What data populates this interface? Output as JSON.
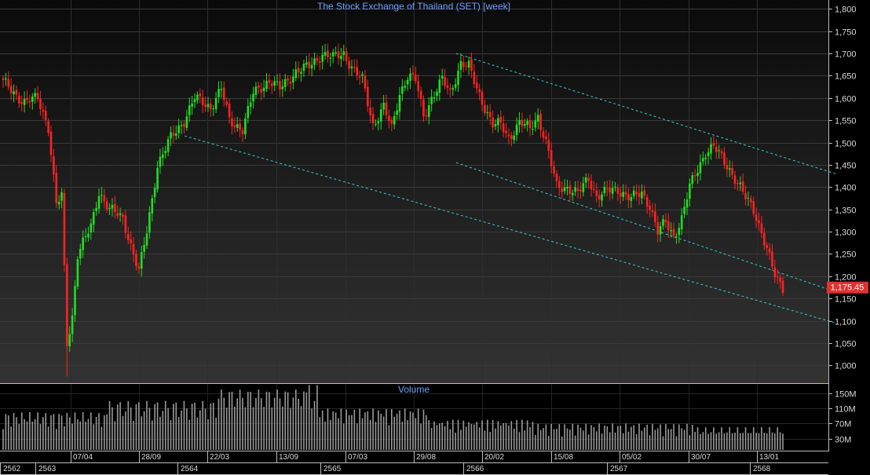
{
  "chart_data": {
    "type": "candlestick",
    "title": "The Stock Exchange of Thailand (SET) [week]",
    "volume_title": "Volume",
    "ylim": [
      960,
      1820
    ],
    "y_ticks": [
      1000,
      1050,
      1100,
      1150,
      1200,
      1250,
      1300,
      1350,
      1400,
      1450,
      1500,
      1550,
      1600,
      1650,
      1700,
      1750,
      1800
    ],
    "y_tick_labels": [
      "1,000",
      "1,050",
      "1,100",
      "1,150",
      "1,200",
      "1,250",
      "1,300",
      "1,350",
      "1,400",
      "1,450",
      "1,500",
      "1,550",
      "1,600",
      "1,650",
      "1,700",
      "1,750",
      "1,800"
    ],
    "volume_ticks": [
      30,
      70,
      110,
      150
    ],
    "volume_tick_labels": [
      "30M",
      "70M",
      "110M",
      "150M"
    ],
    "volume_max": 175,
    "last_price": 1175.45,
    "last_price_label": "1,175.45",
    "x_date_labels": [
      "07/04",
      "28/09",
      "22/03",
      "13/09",
      "07/03",
      "29/08",
      "20/02",
      "15/08",
      "05/02",
      "30/07",
      "13/01"
    ],
    "x_year_labels": [
      "2562",
      "2563",
      "2564",
      "2565",
      "2566",
      "2567",
      "2568"
    ],
    "close_keypoints": [
      [
        0,
        1635
      ],
      [
        8,
        1590
      ],
      [
        13,
        1600
      ],
      [
        17,
        1535
      ],
      [
        20,
        1360
      ],
      [
        22,
        1380
      ],
      [
        24,
        1050
      ],
      [
        26,
        1110
      ],
      [
        28,
        1250
      ],
      [
        33,
        1310
      ],
      [
        36,
        1390
      ],
      [
        40,
        1350
      ],
      [
        45,
        1330
      ],
      [
        51,
        1210
      ],
      [
        54,
        1300
      ],
      [
        58,
        1450
      ],
      [
        63,
        1510
      ],
      [
        68,
        1550
      ],
      [
        72,
        1600
      ],
      [
        78,
        1580
      ],
      [
        82,
        1620
      ],
      [
        85,
        1550
      ],
      [
        90,
        1530
      ],
      [
        94,
        1610
      ],
      [
        100,
        1640
      ],
      [
        104,
        1620
      ],
      [
        110,
        1660
      ],
      [
        115,
        1670
      ],
      [
        120,
        1700
      ],
      [
        124,
        1690
      ],
      [
        128,
        1700
      ],
      [
        132,
        1660
      ],
      [
        135,
        1640
      ],
      [
        139,
        1540
      ],
      [
        143,
        1580
      ],
      [
        146,
        1530
      ],
      [
        149,
        1610
      ],
      [
        152,
        1650
      ],
      [
        155,
        1640
      ],
      [
        158,
        1560
      ],
      [
        161,
        1600
      ],
      [
        165,
        1640
      ],
      [
        168,
        1610
      ],
      [
        172,
        1680
      ],
      [
        175,
        1670
      ],
      [
        178,
        1620
      ],
      [
        181,
        1580
      ],
      [
        184,
        1540
      ],
      [
        187,
        1540
      ],
      [
        190,
        1510
      ],
      [
        194,
        1545
      ],
      [
        198,
        1530
      ],
      [
        201,
        1560
      ],
      [
        204,
        1500
      ],
      [
        208,
        1400
      ],
      [
        212,
        1400
      ],
      [
        216,
        1385
      ],
      [
        220,
        1420
      ],
      [
        223,
        1380
      ],
      [
        227,
        1390
      ],
      [
        231,
        1395
      ],
      [
        236,
        1375
      ],
      [
        240,
        1385
      ],
      [
        243,
        1360
      ],
      [
        246,
        1300
      ],
      [
        249,
        1320
      ],
      [
        252,
        1290
      ],
      [
        255,
        1330
      ],
      [
        258,
        1400
      ],
      [
        261,
        1440
      ],
      [
        264,
        1480
      ],
      [
        267,
        1490
      ],
      [
        270,
        1465
      ],
      [
        273,
        1440
      ],
      [
        276,
        1410
      ],
      [
        279,
        1375
      ],
      [
        282,
        1350
      ],
      [
        285,
        1300
      ],
      [
        288,
        1240
      ],
      [
        290,
        1200
      ],
      [
        293,
        1175
      ]
    ],
    "trendlines": [
      {
        "from": [
          2021.05,
          1515
        ],
        "to": [
          2025.6,
          1095
        ]
      },
      {
        "from": [
          2022.95,
          1455
        ],
        "to": [
          2025.6,
          1165
        ]
      },
      {
        "from": [
          2022.95,
          1700
        ],
        "to": [
          2025.6,
          1430
        ]
      }
    ]
  },
  "price_box_color": "#e23030",
  "up_color": "#22dd22",
  "down_color": "#ff2222",
  "trendline_color": "#3cc8d8",
  "volume_color": "#9a9a9a"
}
